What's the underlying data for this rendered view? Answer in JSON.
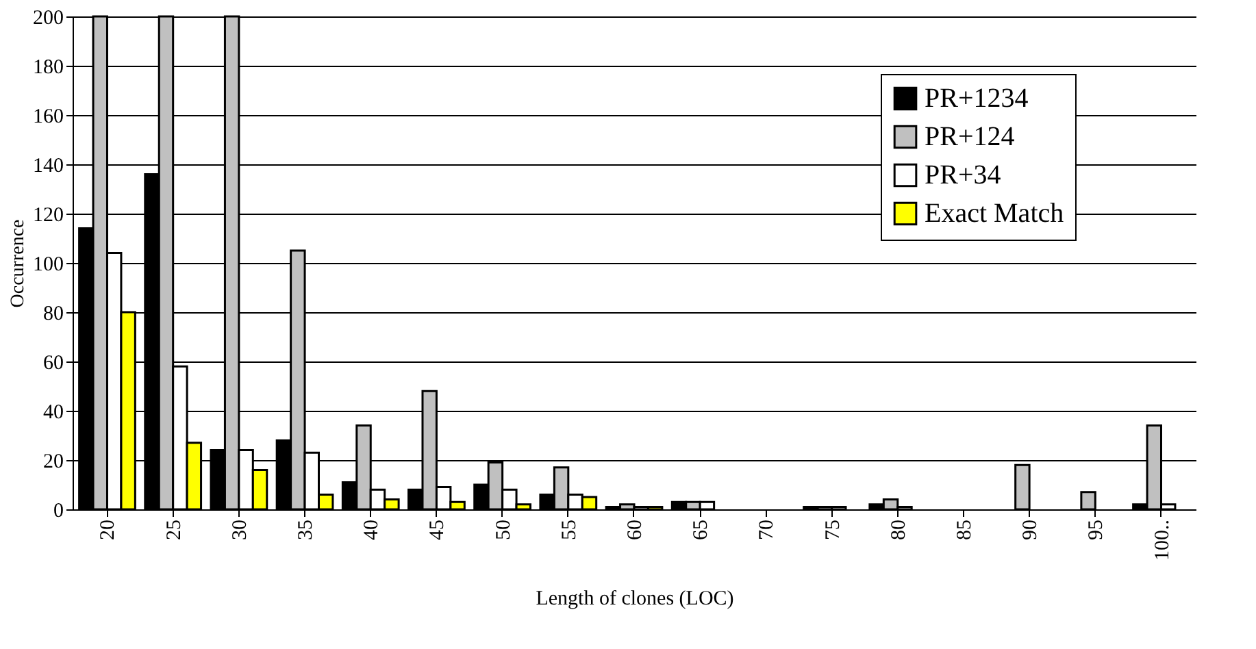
{
  "chart_data": {
    "type": "bar",
    "xlabel": "Length of clones (LOC)",
    "ylabel": "Occurrence",
    "categories": [
      "20",
      "25",
      "30",
      "35",
      "40",
      "45",
      "50",
      "55",
      "60",
      "65",
      "70",
      "75",
      "80",
      "85",
      "90",
      "95",
      "100.."
    ],
    "series": [
      {
        "name": "PR+1234",
        "color": "#000000",
        "values": [
          114,
          136,
          24,
          28,
          11,
          8,
          10,
          6,
          1,
          3,
          0,
          1,
          2,
          0,
          0,
          0,
          2
        ]
      },
      {
        "name": "PR+124",
        "color": "#c0c0c0",
        "values": [
          200,
          200,
          200,
          105,
          34,
          48,
          19,
          17,
          2,
          3,
          0,
          1,
          4,
          0,
          18,
          7,
          34
        ]
      },
      {
        "name": "PR+34",
        "color": "#ffffff",
        "values": [
          104,
          58,
          24,
          23,
          8,
          9,
          8,
          6,
          1,
          3,
          0,
          1,
          1,
          0,
          0,
          0,
          2
        ]
      },
      {
        "name": "Exact Match",
        "color": "#ffff00",
        "values": [
          80,
          27,
          16,
          6,
          4,
          3,
          2,
          5,
          1,
          0,
          0,
          0,
          0,
          0,
          0,
          0,
          0
        ]
      }
    ],
    "ylim": [
      0,
      200
    ],
    "yticks": [
      0,
      20,
      40,
      60,
      80,
      100,
      120,
      140,
      160,
      180,
      200
    ],
    "grid": "y",
    "legend": "top right"
  }
}
